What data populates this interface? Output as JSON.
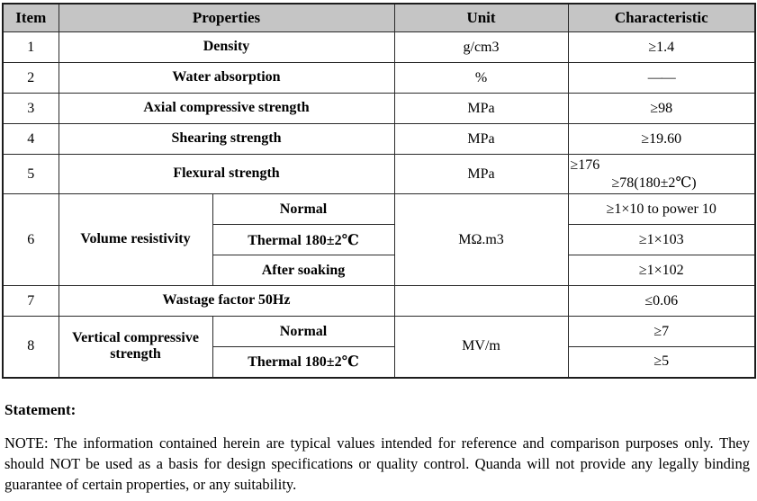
{
  "table": {
    "headers": {
      "item": "Item",
      "properties": "Properties",
      "unit": "Unit",
      "characteristic": "Characteristic"
    },
    "rows": {
      "r1": {
        "item": "1",
        "property": "Density",
        "unit": "g/cm3",
        "characteristic": "≥1.4"
      },
      "r2": {
        "item": "2",
        "property": "Water absorption",
        "unit": "%",
        "characteristic": "——"
      },
      "r3": {
        "item": "3",
        "property": "Axial compressive strength",
        "unit": "MPa",
        "characteristic": "≥98"
      },
      "r4": {
        "item": "4",
        "property": "Shearing strength",
        "unit": "MPa",
        "characteristic": "≥19.60"
      },
      "r5": {
        "item": "5",
        "property": "Flexural strength",
        "unit": "MPa",
        "characteristic_line1": "≥176",
        "characteristic_line2": "≥78(180±2℃)"
      },
      "r6": {
        "item": "6",
        "property": "Volume resistivity",
        "unit": "MΩ.m3",
        "sub_rows": [
          {
            "condition": "Normal",
            "characteristic": "≥1×10 to power 10"
          },
          {
            "condition": "Thermal 180±2℃",
            "characteristic": "≥1×103"
          },
          {
            "condition": "After soaking",
            "characteristic": "≥1×102"
          }
        ]
      },
      "r7": {
        "item": "7",
        "property": "Wastage factor 50Hz",
        "unit": "",
        "characteristic": "≤0.06"
      },
      "r8": {
        "item": "8",
        "property": "Vertical compressive strength",
        "unit": "MV/m",
        "sub_rows": [
          {
            "condition": "Normal",
            "characteristic": "≥7"
          },
          {
            "condition": "Thermal 180±2℃",
            "characteristic": "≥5"
          }
        ]
      }
    }
  },
  "statement": {
    "heading": "Statement:",
    "note": "NOTE: The information contained herein are typical values intended for reference and comparison purposes only. They should NOT be used as a basis for design specifications or quality control. Quanda will not provide any legally binding guarantee of certain properties, or any suitability."
  },
  "colors": {
    "header_bg": "#c5c5c5",
    "border": "#2a2a2a",
    "text": "#000000",
    "background": "#ffffff"
  }
}
